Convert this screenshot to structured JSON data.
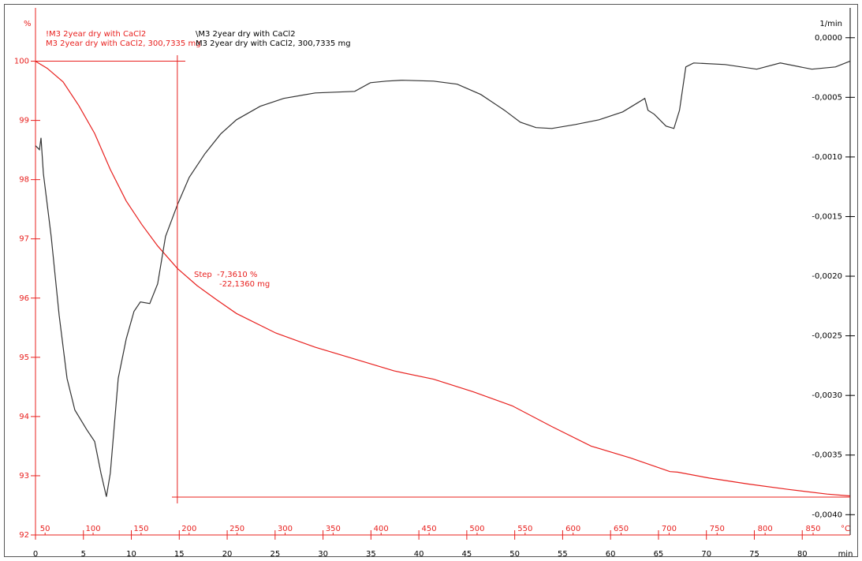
{
  "chart_data": {
    "type": "line",
    "y_label": "%",
    "y2_label": "1/min",
    "x_label": "min",
    "x2_label": "°C",
    "xlim": [
      0,
      85
    ],
    "xticks": [
      0,
      5,
      10,
      15,
      20,
      25,
      30,
      35,
      40,
      45,
      50,
      55,
      60,
      65,
      70,
      75,
      80
    ],
    "x2lim": [
      40,
      888.6
    ],
    "x2ticks": [
      50,
      100,
      150,
      200,
      250,
      300,
      350,
      400,
      450,
      500,
      550,
      600,
      650,
      700,
      750,
      800,
      850
    ],
    "ylim": [
      92,
      100.9
    ],
    "yticks": [
      92,
      93,
      94,
      95,
      96,
      97,
      98,
      99,
      100
    ],
    "y2lim": [
      -0.00417,
      0.00025
    ],
    "y2ticks": [
      {
        "value": 0,
        "label": "0,0000"
      },
      {
        "value": -0.0005,
        "label": "-0,0005"
      },
      {
        "value": -0.001,
        "label": "-0,0010"
      },
      {
        "value": -0.0015,
        "label": "-0,0015"
      },
      {
        "value": -0.002,
        "label": "-0,0020"
      },
      {
        "value": -0.0025,
        "label": "-0,0025"
      },
      {
        "value": -0.003,
        "label": "-0,0030"
      },
      {
        "value": -0.0035,
        "label": "-0,0035"
      },
      {
        "value": -0.004,
        "label": "-0,0040"
      }
    ],
    "series": [
      {
        "name": "!M3 2year dry with CaCl2",
        "sample": "M3 2year dry with CaCl2, 300,7335 mg",
        "color": "#e8201e",
        "axis": "y",
        "x": [
          0,
          1.23,
          2.88,
          4.52,
          6.17,
          7.81,
          9.46,
          11.1,
          12.75,
          14.8,
          16.86,
          18.91,
          20.97,
          25.08,
          29.19,
          33.31,
          37.42,
          41.53,
          45.64,
          49.75,
          53.87,
          57.98,
          62.09,
          66.2,
          67.0,
          70.3,
          74.4,
          78.5,
          82.6,
          84.95
        ],
        "values": [
          100.0,
          99.88,
          99.65,
          99.25,
          98.78,
          98.17,
          97.64,
          97.24,
          96.88,
          96.5,
          96.21,
          95.97,
          95.74,
          95.41,
          95.17,
          94.97,
          94.77,
          94.63,
          94.42,
          94.18,
          93.83,
          93.5,
          93.3,
          93.07,
          93.06,
          92.96,
          92.86,
          92.77,
          92.69,
          92.66
        ]
      },
      {
        "name": "\\M3 2year dry with CaCl2",
        "sample": "M3 2year dry with CaCl2, 300,7335 mg",
        "color": "#333333",
        "axis": "y2",
        "x": [
          0,
          0.41,
          0.58,
          0.82,
          1.64,
          2.47,
          3.29,
          4.11,
          5.35,
          6.17,
          6.83,
          7.4,
          7.81,
          8.63,
          9.46,
          10.28,
          10.94,
          11.92,
          12.75,
          13.57,
          14.8,
          16.04,
          17.68,
          19.33,
          20.97,
          23.44,
          25.9,
          29.19,
          33.31,
          34.95,
          36.6,
          38.24,
          41.53,
          44.0,
          46.46,
          48.93,
          50.58,
          52.22,
          53.87,
          56.33,
          58.8,
          61.27,
          62.91,
          63.57,
          63.9,
          64.56,
          65.79,
          66.61,
          67.19,
          67.85,
          68.67,
          71.96,
          75.25,
          77.71,
          81.0,
          83.47,
          84.95
        ],
        "values": [
          -0.000906,
          -0.000939,
          -0.00084,
          -0.001138,
          -0.001667,
          -0.002328,
          -0.002857,
          -0.003122,
          -0.003287,
          -0.003386,
          -0.003651,
          -0.003849,
          -0.003651,
          -0.002857,
          -0.002527,
          -0.002295,
          -0.002216,
          -0.002229,
          -0.002064,
          -0.001667,
          -0.001402,
          -0.001171,
          -0.000972,
          -0.000807,
          -0.000688,
          -0.000575,
          -0.000509,
          -0.000463,
          -0.00045,
          -0.000377,
          -0.000364,
          -0.000357,
          -0.000364,
          -0.00039,
          -0.000476,
          -0.000608,
          -0.000708,
          -0.000754,
          -0.000761,
          -0.000728,
          -0.000688,
          -0.000622,
          -0.000542,
          -0.000509,
          -0.000608,
          -0.000642,
          -0.000741,
          -0.000761,
          -0.000609,
          -0.000245,
          -0.000212,
          -0.000225,
          -0.000264,
          -0.000212,
          -0.000264,
          -0.000245,
          -0.000198
        ]
      }
    ],
    "step": {
      "label": "Step  -7,3610 %",
      "mass": "-22,1360 mg",
      "upper": 100,
      "lower": 92.639,
      "t": 14.8
    }
  }
}
